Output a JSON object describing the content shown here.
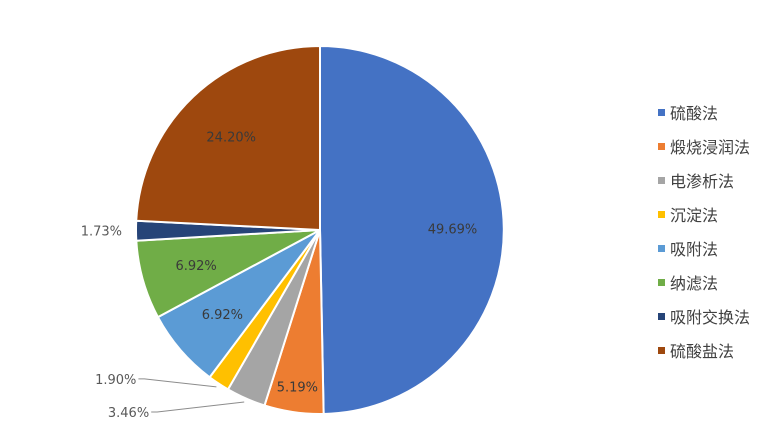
{
  "chart_data": {
    "type": "pie",
    "title": "",
    "categories": [
      "硫酸法",
      "煅烧浸润法",
      "电渗析法",
      "沉淀法",
      "吸附法",
      "纳滤法",
      "吸附交换法",
      "硫酸盐法"
    ],
    "values": [
      49.69,
      5.19,
      3.46,
      1.9,
      6.92,
      6.92,
      1.73,
      24.2
    ],
    "data_labels": [
      "49.69%",
      "5.19%",
      "3.46%",
      "1.90%",
      "6.92%",
      "6.92%",
      "1.73%",
      "24.20%"
    ],
    "colors": [
      "#4472C4",
      "#ED7D31",
      "#A5A5A5",
      "#FFC000",
      "#5B9BD5",
      "#70AD47",
      "#264478",
      "#9E480E"
    ],
    "legend_position": "right",
    "start": "top, clockwise"
  }
}
